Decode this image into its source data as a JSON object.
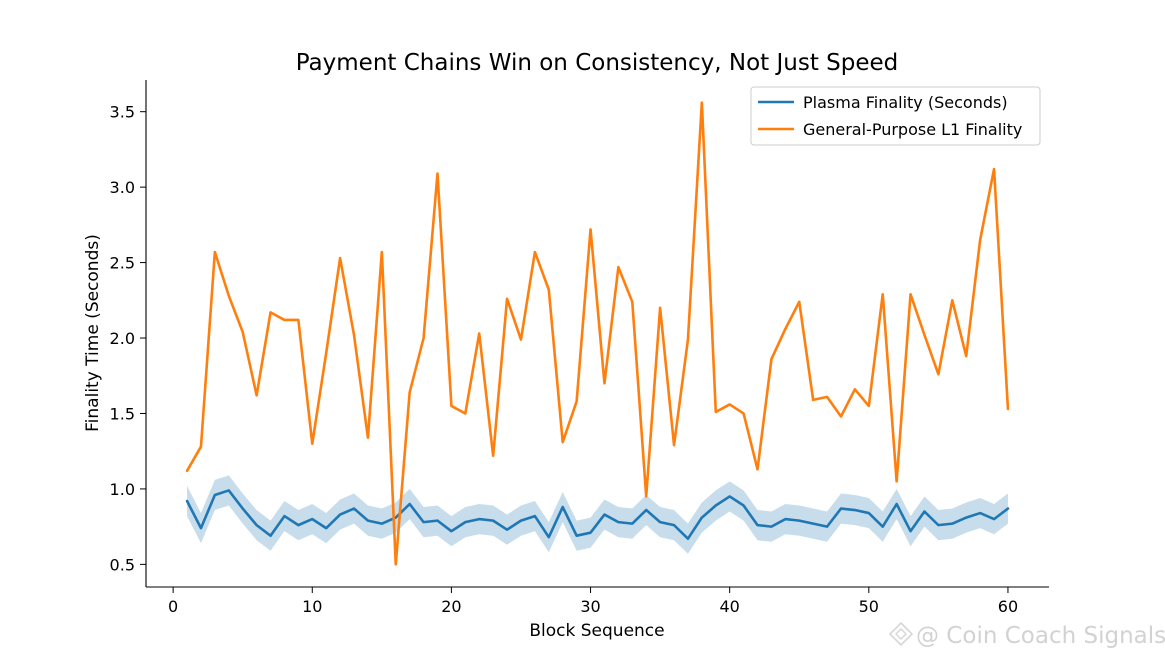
{
  "chart_data": {
    "type": "line",
    "title": "Payment Chains Win on Consistency, Not Just Speed",
    "xlabel": "Block Sequence",
    "ylabel": "Finality Time (Seconds)",
    "xlim": [
      -1.95,
      62.95
    ],
    "ylim": [
      0.35,
      3.71
    ],
    "xticks": [
      0,
      10,
      20,
      30,
      40,
      50,
      60
    ],
    "xtick_labels": [
      "0",
      "10",
      "20",
      "30",
      "40",
      "50",
      "60"
    ],
    "yticks": [
      0.5,
      1.0,
      1.5,
      2.0,
      2.5,
      3.0,
      3.5
    ],
    "ytick_labels": [
      "0.5",
      "1.0",
      "1.5",
      "2.0",
      "2.5",
      "3.0",
      "3.5"
    ],
    "legend_position": "top-right",
    "x": [
      1,
      2,
      3,
      4,
      5,
      6,
      7,
      8,
      9,
      10,
      11,
      12,
      13,
      14,
      15,
      16,
      17,
      18,
      19,
      20,
      21,
      22,
      23,
      24,
      25,
      26,
      27,
      28,
      29,
      30,
      31,
      32,
      33,
      34,
      35,
      36,
      37,
      38,
      39,
      40,
      41,
      42,
      43,
      44,
      45,
      46,
      47,
      48,
      49,
      50,
      51,
      52,
      53,
      54,
      55,
      56,
      57,
      58,
      59,
      60
    ],
    "series": [
      {
        "name": "Plasma Finality (Seconds)",
        "color": "#1f77b4",
        "band_color": "#1f77b4",
        "band_opacity": 0.25,
        "band_halfwidth": 0.1,
        "values": [
          0.92,
          0.74,
          0.96,
          0.99,
          0.87,
          0.76,
          0.69,
          0.82,
          0.76,
          0.8,
          0.74,
          0.83,
          0.87,
          0.79,
          0.77,
          0.81,
          0.9,
          0.78,
          0.79,
          0.72,
          0.78,
          0.8,
          0.79,
          0.73,
          0.79,
          0.82,
          0.68,
          0.88,
          0.69,
          0.71,
          0.83,
          0.78,
          0.77,
          0.86,
          0.78,
          0.76,
          0.67,
          0.81,
          0.89,
          0.95,
          0.89,
          0.76,
          0.75,
          0.8,
          0.79,
          0.77,
          0.75,
          0.87,
          0.86,
          0.84,
          0.75,
          0.9,
          0.72,
          0.85,
          0.76,
          0.77,
          0.81,
          0.84,
          0.8,
          0.87
        ]
      },
      {
        "name": "General-Purpose L1 Finality",
        "color": "#ff7f0e",
        "values": [
          1.12,
          1.28,
          2.57,
          2.28,
          2.04,
          1.62,
          2.17,
          2.12,
          2.12,
          1.3,
          1.9,
          2.53,
          2.02,
          1.34,
          2.57,
          0.5,
          1.64,
          2.0,
          3.09,
          1.55,
          1.5,
          2.03,
          1.22,
          2.26,
          1.99,
          2.57,
          2.32,
          1.31,
          1.58,
          2.72,
          1.7,
          2.47,
          2.24,
          0.95,
          2.2,
          1.29,
          1.99,
          3.56,
          1.51,
          1.56,
          1.5,
          1.13,
          1.86,
          2.06,
          2.24,
          1.59,
          1.61,
          1.48,
          1.66,
          1.55,
          2.29,
          1.05,
          2.29,
          2.02,
          1.76,
          2.25,
          1.88,
          2.65,
          3.12,
          1.53
        ]
      }
    ]
  },
  "watermark": {
    "text": "@ Coin Coach Signals",
    "icon": "diamond-logo-icon"
  }
}
